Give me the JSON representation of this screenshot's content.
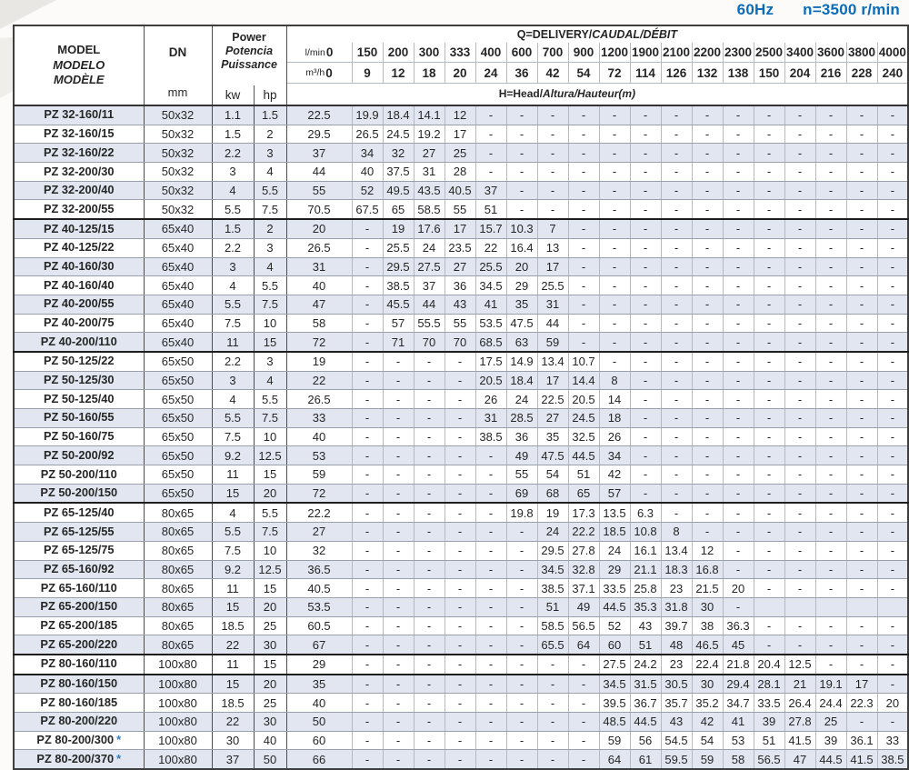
{
  "page": {
    "frequency_label": "60Hz",
    "speed_label": "n=3500 r/min",
    "accent_color": "#0b6cba",
    "stripe_color": "#e1e6f0"
  },
  "table": {
    "header": {
      "model_lines": [
        "MODEL",
        "MODELO",
        "MODÈLE"
      ],
      "dn_label": "DN",
      "dn_unit": "mm",
      "power_lines": [
        "Power",
        "Potencia",
        "Puissance"
      ],
      "kw_label": "kw",
      "hp_label": "hp",
      "q_title_plain": "Q=DELIVERY/",
      "q_title_italic": "CAUDAL/DÉBIT",
      "flow_unit_lmin": "l/min",
      "flow_unit_m3h": "m³/h",
      "head_title_plain": "H=Head/",
      "head_title_italic": "Altura/Hauteur(m)"
    },
    "flow_lmin": [
      "0",
      "150",
      "200",
      "300",
      "333",
      "400",
      "600",
      "700",
      "900",
      "1200",
      "1900",
      "2100",
      "2200",
      "2300",
      "2500",
      "3400",
      "3600",
      "3800",
      "4000"
    ],
    "flow_m3h": [
      "0",
      "9",
      "12",
      "18",
      "20",
      "24",
      "36",
      "42",
      "54",
      "72",
      "114",
      "126",
      "132",
      "138",
      "150",
      "204",
      "216",
      "228",
      "240"
    ],
    "group_end_rows": [
      5,
      12,
      20,
      28,
      29
    ],
    "rows": [
      {
        "model": "PZ 32-160/11",
        "dn": "50x32",
        "kw": "1.1",
        "hp": "1.5",
        "heads": [
          "22.5",
          "19.9",
          "18.4",
          "14.1",
          "12",
          "-",
          "-",
          "-",
          "-",
          "-",
          "-",
          "-",
          "-",
          "-",
          "-",
          "-",
          "-",
          "-",
          "-"
        ]
      },
      {
        "model": "PZ 32-160/15",
        "dn": "50x32",
        "kw": "1.5",
        "hp": "2",
        "heads": [
          "29.5",
          "26.5",
          "24.5",
          "19.2",
          "17",
          "-",
          "-",
          "-",
          "-",
          "-",
          "-",
          "-",
          "-",
          "-",
          "-",
          "-",
          "-",
          "-",
          "-"
        ]
      },
      {
        "model": "PZ 32-160/22",
        "dn": "50x32",
        "kw": "2.2",
        "hp": "3",
        "heads": [
          "37",
          "34",
          "32",
          "27",
          "25",
          "-",
          "-",
          "-",
          "-",
          "-",
          "-",
          "-",
          "-",
          "-",
          "-",
          "-",
          "-",
          "-",
          "-"
        ]
      },
      {
        "model": "PZ 32-200/30",
        "dn": "50x32",
        "kw": "3",
        "hp": "4",
        "heads": [
          "44",
          "40",
          "37.5",
          "31",
          "28",
          "-",
          "-",
          "-",
          "-",
          "-",
          "-",
          "-",
          "-",
          "-",
          "-",
          "-",
          "-",
          "-",
          "-"
        ]
      },
      {
        "model": "PZ 32-200/40",
        "dn": "50x32",
        "kw": "4",
        "hp": "5.5",
        "heads": [
          "55",
          "52",
          "49.5",
          "43.5",
          "40.5",
          "37",
          "-",
          "-",
          "-",
          "-",
          "-",
          "-",
          "-",
          "-",
          "-",
          "-",
          "-",
          "-",
          "-"
        ]
      },
      {
        "model": "PZ 32-200/55",
        "dn": "50x32",
        "kw": "5.5",
        "hp": "7.5",
        "heads": [
          "70.5",
          "67.5",
          "65",
          "58.5",
          "55",
          "51",
          "-",
          "-",
          "-",
          "-",
          "-",
          "-",
          "-",
          "-",
          "-",
          "-",
          "-",
          "-",
          "-"
        ]
      },
      {
        "model": "PZ 40-125/15",
        "dn": "65x40",
        "kw": "1.5",
        "hp": "2",
        "heads": [
          "20",
          "-",
          "19",
          "17.6",
          "17",
          "15.7",
          "10.3",
          "7",
          "-",
          "-",
          "-",
          "-",
          "-",
          "-",
          "-",
          "-",
          "-",
          "-",
          "-"
        ]
      },
      {
        "model": "PZ 40-125/22",
        "dn": "65x40",
        "kw": "2.2",
        "hp": "3",
        "heads": [
          "26.5",
          "-",
          "25.5",
          "24",
          "23.5",
          "22",
          "16.4",
          "13",
          "-",
          "-",
          "-",
          "-",
          "-",
          "-",
          "-",
          "-",
          "-",
          "-",
          "-"
        ]
      },
      {
        "model": "PZ 40-160/30",
        "dn": "65x40",
        "kw": "3",
        "hp": "4",
        "heads": [
          "31",
          "-",
          "29.5",
          "27.5",
          "27",
          "25.5",
          "20",
          "17",
          "-",
          "-",
          "-",
          "-",
          "-",
          "-",
          "-",
          "-",
          "-",
          "-",
          "-"
        ]
      },
      {
        "model": "PZ 40-160/40",
        "dn": "65x40",
        "kw": "4",
        "hp": "5.5",
        "heads": [
          "40",
          "-",
          "38.5",
          "37",
          "36",
          "34.5",
          "29",
          "25.5",
          "-",
          "-",
          "-",
          "-",
          "-",
          "-",
          "-",
          "-",
          "-",
          "-",
          "-"
        ]
      },
      {
        "model": "PZ 40-200/55",
        "dn": "65x40",
        "kw": "5.5",
        "hp": "7.5",
        "heads": [
          "47",
          "-",
          "45.5",
          "44",
          "43",
          "41",
          "35",
          "31",
          "-",
          "-",
          "-",
          "-",
          "-",
          "-",
          "-",
          "-",
          "-",
          "-",
          "-"
        ]
      },
      {
        "model": "PZ 40-200/75",
        "dn": "65x40",
        "kw": "7.5",
        "hp": "10",
        "heads": [
          "58",
          "-",
          "57",
          "55.5",
          "55",
          "53.5",
          "47.5",
          "44",
          "-",
          "-",
          "-",
          "-",
          "-",
          "-",
          "-",
          "-",
          "-",
          "-",
          "-"
        ]
      },
      {
        "model": "PZ 40-200/110",
        "dn": "65x40",
        "kw": "11",
        "hp": "15",
        "heads": [
          "72",
          "-",
          "71",
          "70",
          "70",
          "68.5",
          "63",
          "59",
          "-",
          "-",
          "-",
          "-",
          "-",
          "-",
          "-",
          "-",
          "-",
          "-",
          "-"
        ]
      },
      {
        "model": "PZ 50-125/22",
        "dn": "65x50",
        "kw": "2.2",
        "hp": "3",
        "heads": [
          "19",
          "-",
          "-",
          "-",
          "-",
          "17.5",
          "14.9",
          "13.4",
          "10.7",
          "-",
          "-",
          "-",
          "-",
          "-",
          "-",
          "-",
          "-",
          "-",
          "-"
        ]
      },
      {
        "model": "PZ 50-125/30",
        "dn": "65x50",
        "kw": "3",
        "hp": "4",
        "heads": [
          "22",
          "-",
          "-",
          "-",
          "-",
          "20.5",
          "18.4",
          "17",
          "14.4",
          "8",
          "-",
          "-",
          "-",
          "-",
          "-",
          "-",
          "-",
          "-",
          "-"
        ]
      },
      {
        "model": "PZ 50-125/40",
        "dn": "65x50",
        "kw": "4",
        "hp": "5.5",
        "heads": [
          "26.5",
          "-",
          "-",
          "-",
          "-",
          "26",
          "24",
          "22.5",
          "20.5",
          "14",
          "-",
          "-",
          "-",
          "-",
          "-",
          "-",
          "-",
          "-",
          "-"
        ]
      },
      {
        "model": "PZ 50-160/55",
        "dn": "65x50",
        "kw": "5.5",
        "hp": "7.5",
        "heads": [
          "33",
          "-",
          "-",
          "-",
          "-",
          "31",
          "28.5",
          "27",
          "24.5",
          "18",
          "-",
          "-",
          "-",
          "-",
          "-",
          "-",
          "-",
          "-",
          "-"
        ]
      },
      {
        "model": "PZ 50-160/75",
        "dn": "65x50",
        "kw": "7.5",
        "hp": "10",
        "heads": [
          "40",
          "-",
          "-",
          "-",
          "-",
          "38.5",
          "36",
          "35",
          "32.5",
          "26",
          "-",
          "-",
          "-",
          "-",
          "-",
          "-",
          "-",
          "-",
          "-"
        ]
      },
      {
        "model": "PZ 50-200/92",
        "dn": "65x50",
        "kw": "9.2",
        "hp": "12.5",
        "heads": [
          "53",
          "-",
          "-",
          "-",
          "-",
          "-",
          "49",
          "47.5",
          "44.5",
          "34",
          "-",
          "-",
          "-",
          "-",
          "-",
          "-",
          "-",
          "-",
          "-"
        ]
      },
      {
        "model": "PZ 50-200/110",
        "dn": "65x50",
        "kw": "11",
        "hp": "15",
        "heads": [
          "59",
          "-",
          "-",
          "-",
          "-",
          "-",
          "55",
          "54",
          "51",
          "42",
          "-",
          "-",
          "-",
          "-",
          "-",
          "-",
          "-",
          "-",
          "-"
        ]
      },
      {
        "model": "PZ 50-200/150",
        "dn": "65x50",
        "kw": "15",
        "hp": "20",
        "heads": [
          "72",
          "-",
          "-",
          "-",
          "-",
          "-",
          "69",
          "68",
          "65",
          "57",
          "-",
          "-",
          "-",
          "-",
          "-",
          "-",
          "-",
          "-",
          "-"
        ]
      },
      {
        "model": "PZ 65-125/40",
        "dn": "80x65",
        "kw": "4",
        "hp": "5.5",
        "heads": [
          "22.2",
          "-",
          "-",
          "-",
          "-",
          "-",
          "19.8",
          "19",
          "17.3",
          "13.5",
          "6.3",
          "-",
          "-",
          "-",
          "-",
          "-",
          "-",
          "-",
          "-"
        ]
      },
      {
        "model": "PZ 65-125/55",
        "dn": "80x65",
        "kw": "5.5",
        "hp": "7.5",
        "heads": [
          "27",
          "-",
          "-",
          "-",
          "-",
          "-",
          "-",
          "24",
          "22.2",
          "18.5",
          "10.8",
          "8",
          "-",
          "-",
          "-",
          "-",
          "-",
          "-",
          "-"
        ]
      },
      {
        "model": "PZ 65-125/75",
        "dn": "80x65",
        "kw": "7.5",
        "hp": "10",
        "heads": [
          "32",
          "-",
          "-",
          "-",
          "-",
          "-",
          "-",
          "29.5",
          "27.8",
          "24",
          "16.1",
          "13.4",
          "12",
          "-",
          "-",
          "-",
          "-",
          "-",
          "-"
        ]
      },
      {
        "model": "PZ 65-160/92",
        "dn": "80x65",
        "kw": "9.2",
        "hp": "12.5",
        "heads": [
          "36.5",
          "-",
          "-",
          "-",
          "-",
          "-",
          "-",
          "34.5",
          "32.8",
          "29",
          "21.1",
          "18.3",
          "16.8",
          "-",
          "-",
          "-",
          "-",
          "-",
          "-"
        ]
      },
      {
        "model": "PZ 65-160/110",
        "dn": "80x65",
        "kw": "11",
        "hp": "15",
        "heads": [
          "40.5",
          "-",
          "-",
          "-",
          "-",
          "-",
          "-",
          "38.5",
          "37.1",
          "33.5",
          "25.8",
          "23",
          "21.5",
          "20",
          "-",
          "-",
          "-",
          "-",
          "-"
        ]
      },
      {
        "model": "PZ 65-200/150",
        "dn": "80x65",
        "kw": "15",
        "hp": "20",
        "heads": [
          "53.5",
          "-",
          "-",
          "-",
          "-",
          "-",
          "-",
          "51",
          "49",
          "44.5",
          "35.3",
          "31.8",
          "30",
          "-",
          "",
          "",
          "",
          "",
          ""
        ]
      },
      {
        "model": "PZ 65-200/185",
        "dn": "80x65",
        "kw": "18.5",
        "hp": "25",
        "heads": [
          "60.5",
          "-",
          "-",
          "-",
          "-",
          "-",
          "-",
          "58.5",
          "56.5",
          "52",
          "43",
          "39.7",
          "38",
          "36.3",
          "-",
          "-",
          "-",
          "-",
          "-"
        ]
      },
      {
        "model": "PZ 65-200/220",
        "dn": "80x65",
        "kw": "22",
        "hp": "30",
        "heads": [
          "67",
          "-",
          "-",
          "-",
          "-",
          "-",
          "-",
          "65.5",
          "64",
          "60",
          "51",
          "48",
          "46.5",
          "45",
          "-",
          "-",
          "-",
          "-",
          "-"
        ]
      },
      {
        "model": "PZ 80-160/110",
        "dn": "100x80",
        "kw": "11",
        "hp": "15",
        "heads": [
          "29",
          "-",
          "-",
          "-",
          "-",
          "-",
          "-",
          "-",
          "-",
          "27.5",
          "24.2",
          "23",
          "22.4",
          "21.8",
          "20.4",
          "12.5",
          "-",
          "-",
          "-"
        ]
      },
      {
        "model": "PZ 80-160/150",
        "dn": "100x80",
        "kw": "15",
        "hp": "20",
        "heads": [
          "35",
          "-",
          "-",
          "-",
          "-",
          "-",
          "-",
          "-",
          "-",
          "34.5",
          "31.5",
          "30.5",
          "30",
          "29.4",
          "28.1",
          "21",
          "19.1",
          "17",
          "-"
        ]
      },
      {
        "model": "PZ 80-160/185",
        "dn": "100x80",
        "kw": "18.5",
        "hp": "25",
        "heads": [
          "40",
          "-",
          "-",
          "-",
          "-",
          "-",
          "-",
          "-",
          "-",
          "39.5",
          "36.7",
          "35.7",
          "35.2",
          "34.7",
          "33.5",
          "26.4",
          "24.4",
          "22.3",
          "20"
        ]
      },
      {
        "model": "PZ 80-200/220",
        "dn": "100x80",
        "kw": "22",
        "hp": "30",
        "heads": [
          "50",
          "-",
          "-",
          "-",
          "-",
          "-",
          "-",
          "-",
          "-",
          "48.5",
          "44.5",
          "43",
          "42",
          "41",
          "39",
          "27.8",
          "25",
          "-",
          "-"
        ]
      },
      {
        "model": "PZ 80-200/300",
        "note": "*",
        "dn": "100x80",
        "kw": "30",
        "hp": "40",
        "heads": [
          "60",
          "-",
          "-",
          "-",
          "-",
          "-",
          "-",
          "-",
          "-",
          "59",
          "56",
          "54.5",
          "54",
          "53",
          "51",
          "41.5",
          "39",
          "36.1",
          "33"
        ]
      },
      {
        "model": "PZ 80-200/370",
        "note": "*",
        "dn": "100x80",
        "kw": "37",
        "hp": "50",
        "heads": [
          "66",
          "-",
          "-",
          "-",
          "-",
          "-",
          "-",
          "-",
          "-",
          "64",
          "61",
          "59.5",
          "59",
          "58",
          "56.5",
          "47",
          "44.5",
          "41.5",
          "38.5"
        ]
      }
    ]
  }
}
